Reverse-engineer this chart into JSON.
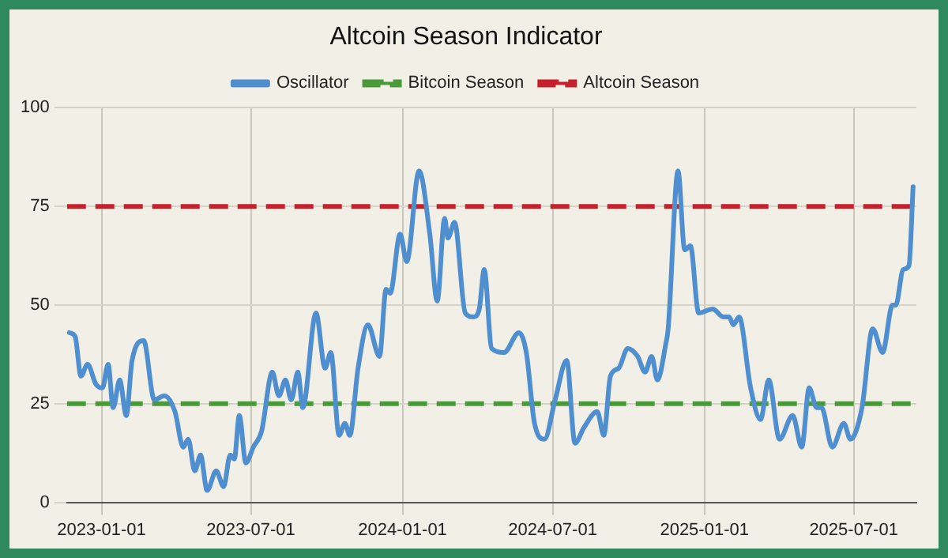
{
  "chart_data": {
    "type": "line",
    "title": "Altcoin Season Indicator",
    "x": [
      "2022-11-23",
      "2022-11-30",
      "2022-12-07",
      "2022-12-15",
      "2022-12-25",
      "2023-01-02",
      "2023-01-09",
      "2023-01-15",
      "2023-01-23",
      "2023-01-31",
      "2023-02-07",
      "2023-02-21",
      "2023-03-06",
      "2023-03-18",
      "2023-03-31",
      "2023-04-10",
      "2023-04-16",
      "2023-04-24",
      "2023-05-01",
      "2023-05-09",
      "2023-05-20",
      "2023-05-29",
      "2023-06-06",
      "2023-06-11",
      "2023-06-17",
      "2023-06-25",
      "2023-07-04",
      "2023-07-14",
      "2023-07-27",
      "2023-08-04",
      "2023-08-12",
      "2023-08-19",
      "2023-08-27",
      "2023-09-02",
      "2023-09-18",
      "2023-09-29",
      "2023-10-06",
      "2023-10-16",
      "2023-10-23",
      "2023-10-29",
      "2023-11-08",
      "2023-11-20",
      "2023-12-04",
      "2023-12-12",
      "2023-12-17",
      "2023-12-29",
      "2024-01-06",
      "2024-01-21",
      "2024-02-03",
      "2024-02-12",
      "2024-02-21",
      "2024-02-25",
      "2024-03-04",
      "2024-03-17",
      "2024-03-27",
      "2024-04-03",
      "2024-04-09",
      "2024-04-18",
      "2024-05-03",
      "2024-05-21",
      "2024-05-30",
      "2024-06-09",
      "2024-06-21",
      "2024-07-04",
      "2024-07-18",
      "2024-07-28",
      "2024-08-08",
      "2024-08-24",
      "2024-09-01",
      "2024-09-09",
      "2024-09-19",
      "2024-09-30",
      "2024-10-12",
      "2024-10-21",
      "2024-10-29",
      "2024-11-05",
      "2024-11-15",
      "2024-11-18",
      "2024-11-30",
      "2024-12-08",
      "2024-12-15",
      "2024-12-25",
      "2025-01-11",
      "2025-01-24",
      "2025-01-31",
      "2025-02-05",
      "2025-02-12",
      "2025-02-26",
      "2025-03-10",
      "2025-03-20",
      "2025-04-02",
      "2025-04-18",
      "2025-04-29",
      "2025-05-08",
      "2025-05-17",
      "2025-05-23",
      "2025-06-05",
      "2025-06-19",
      "2025-06-27",
      "2025-07-11",
      "2025-07-24",
      "2025-08-05",
      "2025-08-17",
      "2025-08-21",
      "2025-08-30",
      "2025-09-06",
      "2025-09-11"
    ],
    "series": [
      {
        "name": "Oscillator",
        "color": "#4f8fd0",
        "values": [
          43,
          42,
          32,
          35,
          30,
          29,
          35,
          24,
          31,
          22,
          36,
          41,
          26,
          27,
          23,
          14,
          16,
          8,
          12,
          3,
          8,
          4,
          12,
          11,
          22,
          10,
          14,
          18,
          33,
          27,
          31,
          26,
          33,
          24,
          48,
          34,
          38,
          17,
          20,
          17,
          34,
          45,
          37,
          54,
          53,
          68,
          61,
          84,
          68,
          51,
          72,
          67,
          71,
          48,
          47,
          49,
          59,
          39,
          38,
          43,
          38,
          20,
          16,
          26,
          36,
          15,
          19,
          23,
          17,
          32,
          34,
          39,
          37,
          33,
          37,
          31,
          40,
          44,
          84,
          64,
          65,
          48,
          49,
          47,
          47,
          45,
          47,
          29,
          21,
          31,
          16,
          22,
          14,
          29,
          24,
          24,
          14,
          20,
          16,
          24,
          44,
          38,
          50,
          50,
          59,
          60,
          80
        ]
      }
    ],
    "ref_lines": [
      {
        "axis": "y",
        "value": 25,
        "label": "Bitcoin Season",
        "color": "#4b9a3a",
        "line_style": "dashed"
      },
      {
        "axis": "y",
        "value": 75,
        "label": "Altcoin Season",
        "color": "#c8202a",
        "line_style": "dashed"
      }
    ],
    "xlim": [
      "2022-11-20",
      "2025-09-15"
    ],
    "xticks": [
      "2023-01-01",
      "2023-07-01",
      "2024-01-01",
      "2024-07-01",
      "2025-01-01",
      "2025-07-01"
    ],
    "ylim": [
      0,
      100
    ],
    "yticks": [
      0,
      25,
      50,
      75,
      100
    ],
    "grid": true,
    "legend": "top",
    "marker": "none",
    "line_style": "solid"
  }
}
